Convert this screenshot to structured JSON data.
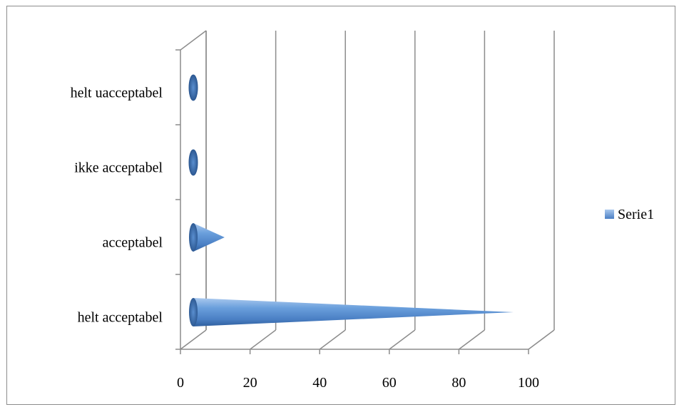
{
  "chart_data": {
    "type": "bar",
    "orientation": "horizontal",
    "style": "3d-cone",
    "categories": [
      "helt acceptabel",
      "acceptabel",
      "ikke acceptabel",
      "helt uacceptabel"
    ],
    "series": [
      {
        "name": "Serie1",
        "values": [
          92,
          9,
          1,
          1
        ],
        "color": "#4f81bd"
      }
    ],
    "xlim": [
      0,
      100
    ],
    "xticks": [
      "0",
      "20",
      "40",
      "60",
      "80",
      "100"
    ],
    "grid": true,
    "legend": "right"
  }
}
